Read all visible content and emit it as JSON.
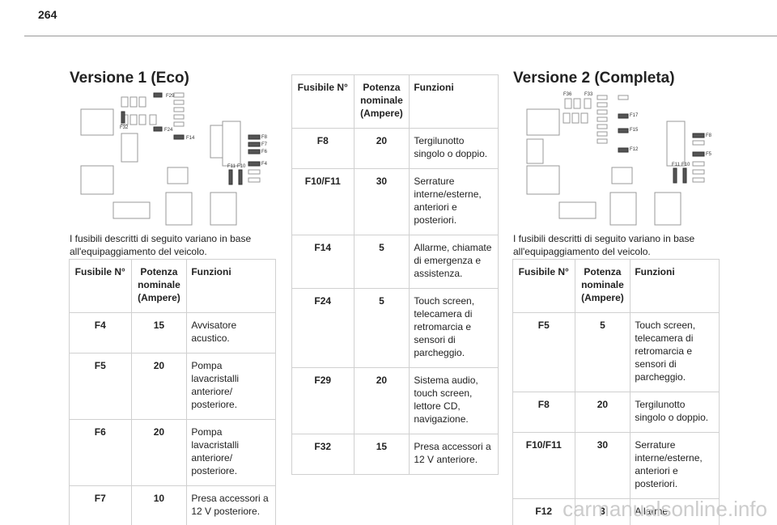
{
  "page_number": "264",
  "sections": [
    {
      "title": "Versione 1 (Eco)",
      "diagram_labels": [
        "F29",
        "F32",
        "F24",
        "F14",
        "F8",
        "F7",
        "F6",
        "F4",
        "F11",
        "F10"
      ],
      "intro": "I fusibili descritti di seguito variano in base all'equipaggiamento del veicolo.",
      "tables": [
        {
          "header": [
            "Fusibile N°",
            "Potenza nominale (Ampere)",
            "Funzioni"
          ],
          "rows": [
            [
              "F4",
              "15",
              "Avvisatore acustico."
            ],
            [
              "F5",
              "20",
              "Pompa lavacristalli anteriore/ posteriore."
            ],
            [
              "F6",
              "20",
              "Pompa lavacristalli anteriore/ posteriore."
            ],
            [
              "F7",
              "10",
              "Presa accessori a 12 V posteriore."
            ]
          ]
        },
        {
          "header": [
            "Fusibile N°",
            "Potenza nominale (Ampere)",
            "Funzioni"
          ],
          "rows": [
            [
              "F8",
              "20",
              "Tergilunotto singolo o doppio."
            ],
            [
              "F10/F11",
              "30",
              "Serrature interne/esterne, anteriori e posteriori."
            ],
            [
              "F14",
              "5",
              "Allarme, chiamate di emergenza e assistenza."
            ],
            [
              "F24",
              "5",
              "Touch screen, telecamera di retromarcia e sensori di parcheggio."
            ],
            [
              "F29",
              "20",
              "Sistema audio, touch screen, lettore CD, navigazione."
            ],
            [
              "F32",
              "15",
              "Presa accessori a 12 V anteriore."
            ]
          ]
        }
      ]
    },
    {
      "title": "Versione 2 (Completa)",
      "diagram_labels": [
        "F36",
        "F33",
        "F17",
        "F15",
        "F12",
        "F8",
        "F5",
        "F11",
        "F10"
      ],
      "intro": "I fusibili descritti di seguito variano in base all'equipaggiamento del veicolo.",
      "tables": [
        {
          "header": [
            "Fusibile N°",
            "Potenza nominale (Ampere)",
            "Funzioni"
          ],
          "rows": [
            [
              "F5",
              "5",
              "Touch screen, telecamera di retromarcia e sensori di parcheggio."
            ],
            [
              "F8",
              "20",
              "Tergilunotto singolo o doppio."
            ],
            [
              "F10/F11",
              "30",
              "Serrature interne/esterne, anteriori e posteriori."
            ],
            [
              "F12",
              "3",
              "Allarme."
            ]
          ]
        }
      ]
    }
  ],
  "watermark": "carmanualsonline.info"
}
